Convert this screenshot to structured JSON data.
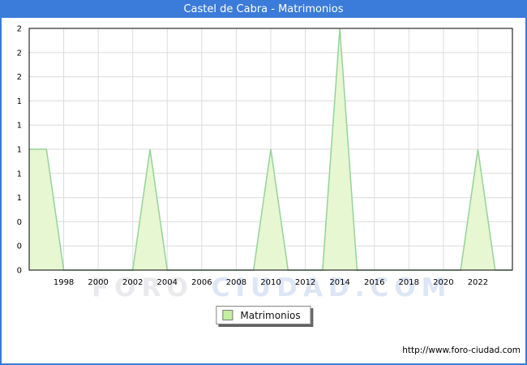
{
  "window": {
    "title": "Castel de Cabra - Matrimonios"
  },
  "watermark": {
    "part1": "FORO",
    "part2": "CIUDAD.COM"
  },
  "legend": {
    "label": "Matrimonios"
  },
  "footer": {
    "url": "http://www.foro-ciudad.com"
  },
  "colors": {
    "accent_blue": "#3b7bd9",
    "legend_swatch": "#c3f0a0",
    "watermark_gray": "#eaeaee",
    "watermark_blue": "#dde6f6"
  },
  "chart_data": {
    "type": "area",
    "title": "Castel de Cabra - Matrimonios",
    "xlabel": "",
    "ylabel": "",
    "x": [
      1996,
      1997,
      1998,
      1999,
      2000,
      2001,
      2002,
      2003,
      2004,
      2005,
      2006,
      2007,
      2008,
      2009,
      2010,
      2011,
      2012,
      2013,
      2014,
      2015,
      2016,
      2017,
      2018,
      2019,
      2020,
      2021,
      2022,
      2023,
      2024
    ],
    "series": [
      {
        "name": "Matrimonios",
        "values": [
          1,
          1,
          0,
          0,
          0,
          0,
          0,
          1,
          0,
          0,
          0,
          0,
          0,
          0,
          1,
          0,
          0,
          0,
          2,
          0,
          0,
          0,
          0,
          0,
          0,
          0,
          1,
          0,
          0
        ]
      }
    ],
    "xlim": [
      1996,
      2024
    ],
    "ylim": [
      0,
      2
    ],
    "y_tick_step": 0.2,
    "y_tick_labels": [
      "2",
      "2",
      "2",
      "1",
      "1",
      "1",
      "1",
      "1",
      "0",
      "0",
      "0"
    ],
    "x_ticks": [
      1998,
      2000,
      2002,
      2004,
      2006,
      2008,
      2010,
      2012,
      2014,
      2016,
      2018,
      2020,
      2022
    ],
    "grid": true,
    "legend_position": "bottom-center",
    "fill_color": "#e6f7d2",
    "line_color": "#96d29a",
    "grid_color": "#dcdcdc"
  }
}
